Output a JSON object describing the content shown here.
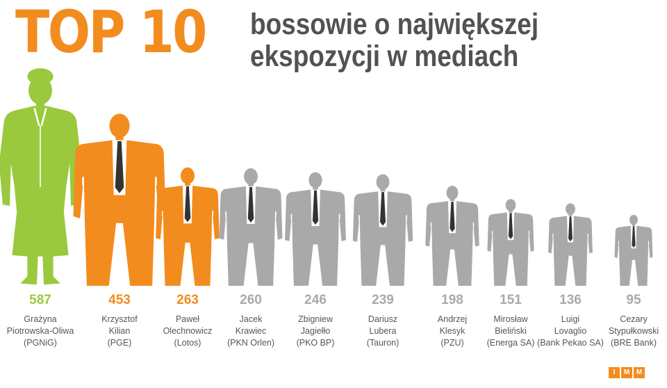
{
  "title": {
    "main": "TOP 10",
    "sub_line1": "bossowie o największej",
    "sub_line2": "ekspozycji w mediach"
  },
  "colors": {
    "female": "#9ac93d",
    "top3": "#f28c1e",
    "rest": "#a9a9a9",
    "tie": "#333333"
  },
  "logo_letters": [
    "I",
    "M",
    "M"
  ],
  "chart_data": {
    "type": "bar",
    "title": "TOP 10 bossowie o największej ekspozycji w mediach",
    "categories": [
      "Grażyna Piotrowska-Oliwa (PGNiG)",
      "Krzysztof Kilian (PGE)",
      "Paweł Olechnowicz (Lotos)",
      "Jacek Krawiec (PKN Orlen)",
      "Zbigniew Jagiełło (PKO BP)",
      "Dariusz Lubera (Tauron)",
      "Andrzej Klesyk (PZU)",
      "Mirosław Bieliński (Energa SA)",
      "Luigi Lovaglio (Bank Pekao SA)",
      "Cezary Stypułkowski (BRE Bank)"
    ],
    "values": [
      587,
      453,
      263,
      260,
      246,
      239,
      198,
      151,
      136,
      95
    ],
    "people": [
      {
        "value": "587",
        "name1": "Grażyna",
        "name2": "Piotrowska-Oliwa",
        "company": "(PGNiG)",
        "figure": "woman"
      },
      {
        "value": "453",
        "name1": "Krzysztof",
        "name2": "Kilian",
        "company": "(PGE)",
        "figure": "man"
      },
      {
        "value": "263",
        "name1": "Paweł",
        "name2": "Olechnowicz",
        "company": "(Lotos)",
        "figure": "man"
      },
      {
        "value": "260",
        "name1": "Jacek",
        "name2": "Krawiec",
        "company": "(PKN Orlen)",
        "figure": "man"
      },
      {
        "value": "246",
        "name1": "Zbigniew",
        "name2": "Jagiełło",
        "company": "(PKO BP)",
        "figure": "man"
      },
      {
        "value": "239",
        "name1": "Dariusz",
        "name2": "Lubera",
        "company": "(Tauron)",
        "figure": "man"
      },
      {
        "value": "198",
        "name1": "Andrzej",
        "name2": "Klesyk",
        "company": "(PZU)",
        "figure": "man"
      },
      {
        "value": "151",
        "name1": "Mirosław",
        "name2": "Bieliński",
        "company": "(Energa SA)",
        "figure": "man"
      },
      {
        "value": "136",
        "name1": "Luigi",
        "name2": "Lovaglio",
        "company": "(Bank Pekao SA)",
        "figure": "man"
      },
      {
        "value": "95",
        "name1": "Cezary",
        "name2": "Stypułkowski",
        "company": "(BRE Bank)",
        "figure": "man"
      }
    ]
  }
}
